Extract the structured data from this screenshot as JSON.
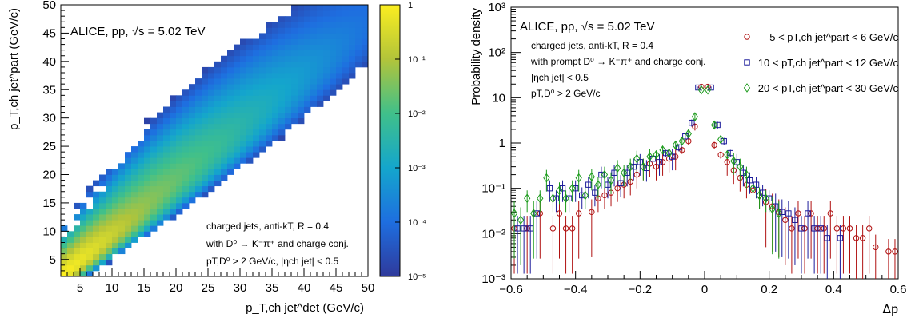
{
  "chart_data": [
    {
      "type": "heatmap",
      "header": "ALICE, pp, √s = 5.02 TeV",
      "xlabel": "p_T,ch jet^det (GeV/c)",
      "ylabel": "p_T,ch jet^part (GeV/c)",
      "xlim": [
        2,
        50
      ],
      "ylim": [
        2,
        50
      ],
      "xticks": [
        "5",
        "10",
        "15",
        "20",
        "25",
        "30",
        "35",
        "40",
        "45",
        "50"
      ],
      "yticks": [
        "5",
        "10",
        "15",
        "20",
        "25",
        "30",
        "35",
        "40",
        "45",
        "50"
      ],
      "colorbar": {
        "scale": "log",
        "range": [
          1e-05,
          1
        ],
        "ticks": [
          "1",
          "10⁻¹",
          "10⁻²",
          "10⁻³",
          "10⁻⁴",
          "10⁻⁵"
        ]
      },
      "annotations": [
        "charged jets, anti-kT, R = 0.4",
        "with D⁰ → K⁻π⁺ and charge conj.",
        "pT,D⁰ > 2 GeV/c, |ηch jet| < 0.5"
      ],
      "description_values": {
        "diagonal_peak": [
          [
            3,
            3,
            0.9
          ],
          [
            6,
            6,
            0.5
          ],
          [
            10,
            10,
            0.2
          ],
          [
            15,
            15,
            0.05
          ],
          [
            20,
            20,
            0.02
          ],
          [
            25,
            25,
            0.008
          ],
          [
            30,
            30,
            0.003
          ],
          [
            35,
            35,
            0.0012
          ],
          [
            40,
            40,
            0.0005
          ],
          [
            45,
            45,
            0.0002
          ],
          [
            49,
            49,
            0.0001
          ]
        ]
      }
    },
    {
      "type": "scatter",
      "header": "ALICE, pp, √s = 5.02 TeV",
      "annotations": [
        "charged jets, anti-kT, R = 0.4",
        "with prompt D⁰ → K⁻π⁺ and charge conj.",
        "|ηch jet| < 0.5",
        "pT,D⁰ > 2 GeV/c"
      ],
      "xlabel": "Δp",
      "ylabel": "Probability density",
      "xlim": [
        -0.6,
        0.6
      ],
      "ylim": [
        0.001,
        1000
      ],
      "yscale": "log",
      "xticks": [
        "−0.6",
        "−0.4",
        "−0.2",
        "0",
        "0.2",
        "0.4",
        "0.6"
      ],
      "yticks": [
        "10⁻³",
        "10⁻²",
        "10⁻¹",
        "1",
        "10",
        "10²",
        "10³"
      ],
      "legend_position": "top-right",
      "series": [
        {
          "name": "5 < pT,ch jet^part < 6 GeV/c",
          "marker": "circle",
          "color": "#b01010",
          "points": [
            [
              -0.59,
              0.013
            ],
            [
              -0.55,
              0.013
            ],
            [
              -0.51,
              0.028
            ],
            [
              -0.47,
              0.013
            ],
            [
              -0.45,
              0.028
            ],
            [
              -0.43,
              0.013
            ],
            [
              -0.41,
              0.013
            ],
            [
              -0.39,
              0.028
            ],
            [
              -0.35,
              0.03
            ],
            [
              -0.33,
              0.06
            ],
            [
              -0.31,
              0.07
            ],
            [
              -0.29,
              0.08
            ],
            [
              -0.27,
              0.1
            ],
            [
              -0.25,
              0.12
            ],
            [
              -0.23,
              0.14
            ],
            [
              -0.21,
              0.2
            ],
            [
              -0.19,
              0.3
            ],
            [
              -0.17,
              0.35
            ],
            [
              -0.15,
              0.3
            ],
            [
              -0.13,
              0.38
            ],
            [
              -0.11,
              0.45
            ],
            [
              -0.09,
              0.5
            ],
            [
              -0.07,
              0.7
            ],
            [
              -0.05,
              1.1
            ],
            [
              -0.03,
              2.3
            ],
            [
              -0.01,
              17.5
            ],
            [
              0.01,
              17.5
            ],
            [
              0.03,
              0.9
            ],
            [
              0.05,
              0.55
            ],
            [
              0.07,
              0.38
            ],
            [
              0.09,
              0.25
            ],
            [
              0.11,
              0.17
            ],
            [
              0.13,
              0.12
            ],
            [
              0.15,
              0.09
            ],
            [
              0.17,
              0.07
            ],
            [
              0.19,
              0.05
            ],
            [
              0.21,
              0.04
            ],
            [
              0.23,
              0.03
            ],
            [
              0.25,
              0.02
            ],
            [
              0.27,
              0.013
            ],
            [
              0.29,
              0.028
            ],
            [
              0.31,
              0.013
            ],
            [
              0.33,
              0.028
            ],
            [
              0.35,
              0.013
            ],
            [
              0.37,
              0.013
            ],
            [
              0.39,
              0.028
            ],
            [
              0.41,
              0.013
            ],
            [
              0.43,
              0.013
            ],
            [
              0.45,
              0.013
            ],
            [
              0.47,
              0.008
            ],
            [
              0.49,
              0.008
            ],
            [
              0.51,
              0.013
            ],
            [
              0.53,
              0.005
            ],
            [
              0.57,
              0.004
            ],
            [
              0.59,
              0.004
            ]
          ]
        },
        {
          "name": "10 < pT,ch jet^part < 12 GeV/c",
          "marker": "square",
          "color": "#1a1a9a",
          "points": [
            [
              -0.58,
              0.013
            ],
            [
              -0.56,
              0.013
            ],
            [
              -0.54,
              0.013
            ],
            [
              -0.52,
              0.028
            ],
            [
              -0.48,
              0.1
            ],
            [
              -0.46,
              0.06
            ],
            [
              -0.44,
              0.1
            ],
            [
              -0.42,
              0.06
            ],
            [
              -0.4,
              0.1
            ],
            [
              -0.38,
              0.07
            ],
            [
              -0.36,
              0.12
            ],
            [
              -0.34,
              0.08
            ],
            [
              -0.32,
              0.2
            ],
            [
              -0.3,
              0.12
            ],
            [
              -0.28,
              0.22
            ],
            [
              -0.26,
              0.13
            ],
            [
              -0.24,
              0.22
            ],
            [
              -0.22,
              0.3
            ],
            [
              -0.2,
              0.38
            ],
            [
              -0.18,
              0.28
            ],
            [
              -0.16,
              0.45
            ],
            [
              -0.14,
              0.38
            ],
            [
              -0.12,
              0.6
            ],
            [
              -0.1,
              0.5
            ],
            [
              -0.08,
              0.8
            ],
            [
              -0.06,
              1.4
            ],
            [
              -0.04,
              2.8
            ],
            [
              -0.02,
              16.8
            ],
            [
              0.02,
              16.8
            ],
            [
              0.04,
              2.5
            ],
            [
              0.06,
              1.1
            ],
            [
              0.08,
              0.6
            ],
            [
              0.1,
              0.38
            ],
            [
              0.12,
              0.22
            ],
            [
              0.14,
              0.15
            ],
            [
              0.16,
              0.12
            ],
            [
              0.18,
              0.08
            ],
            [
              0.2,
              0.06
            ],
            [
              0.22,
              0.04
            ],
            [
              0.24,
              0.03
            ],
            [
              0.26,
              0.028
            ],
            [
              0.28,
              0.02
            ],
            [
              0.3,
              0.013
            ],
            [
              0.32,
              0.028
            ],
            [
              0.34,
              0.013
            ],
            [
              0.36,
              0.013
            ],
            [
              0.38,
              0.008
            ],
            [
              0.42,
              0.008
            ]
          ]
        },
        {
          "name": "20 < pT,ch jet^part < 30 GeV/c",
          "marker": "diamond",
          "color": "#1a9a1a",
          "points": [
            [
              -0.59,
              0.028
            ],
            [
              -0.57,
              0.02
            ],
            [
              -0.55,
              0.06
            ],
            [
              -0.53,
              0.028
            ],
            [
              -0.51,
              0.06
            ],
            [
              -0.49,
              0.17
            ],
            [
              -0.47,
              0.06
            ],
            [
              -0.45,
              0.09
            ],
            [
              -0.43,
              0.06
            ],
            [
              -0.41,
              0.1
            ],
            [
              -0.39,
              0.17
            ],
            [
              -0.37,
              0.07
            ],
            [
              -0.35,
              0.18
            ],
            [
              -0.33,
              0.12
            ],
            [
              -0.31,
              0.2
            ],
            [
              -0.29,
              0.15
            ],
            [
              -0.27,
              0.28
            ],
            [
              -0.25,
              0.22
            ],
            [
              -0.23,
              0.3
            ],
            [
              -0.21,
              0.45
            ],
            [
              -0.19,
              0.3
            ],
            [
              -0.17,
              0.5
            ],
            [
              -0.15,
              0.55
            ],
            [
              -0.13,
              0.7
            ],
            [
              -0.11,
              0.6
            ],
            [
              -0.09,
              0.9
            ],
            [
              -0.07,
              1.1
            ],
            [
              -0.05,
              1.6
            ],
            [
              -0.03,
              3.8
            ],
            [
              -0.01,
              14.8
            ],
            [
              0.01,
              14.8
            ],
            [
              0.03,
              2.5
            ],
            [
              0.05,
              1.2
            ],
            [
              0.07,
              0.55
            ],
            [
              0.09,
              0.4
            ],
            [
              0.11,
              0.3
            ],
            [
              0.13,
              0.2
            ],
            [
              0.15,
              0.1
            ],
            [
              0.17,
              0.07
            ],
            [
              0.19,
              0.06
            ],
            [
              0.21,
              0.035
            ],
            [
              0.23,
              0.028
            ]
          ]
        }
      ]
    }
  ]
}
